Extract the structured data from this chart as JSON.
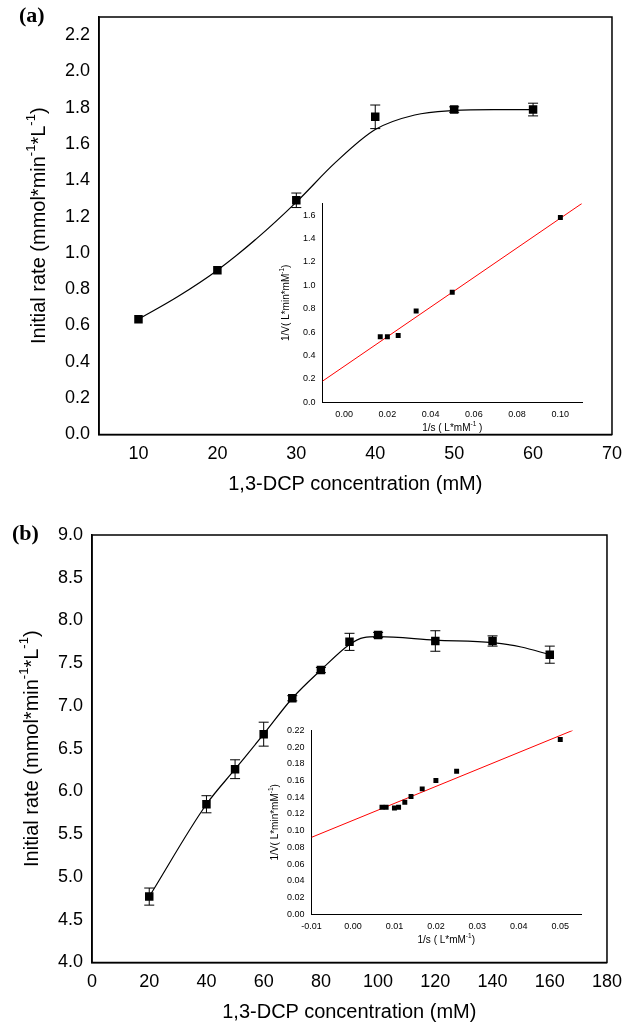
{
  "chart_data": [
    {
      "type": "scatter",
      "title": "(a)",
      "xlabel": "1,3-DCP concentration (mM)",
      "ylabel": "Initial rate (mmol*min$^{-1}$*L$^{-1}$)",
      "xlim": [
        5,
        70
      ],
      "xticks": [
        10,
        20,
        30,
        40,
        50,
        60,
        70
      ],
      "ylim": [
        0,
        2.3
      ],
      "yticks": [
        {
          "value": 0,
          "label": "0.0"
        },
        {
          "value": 0.2,
          "label": "0.2"
        },
        {
          "value": 0.4,
          "label": "0.4"
        },
        {
          "value": 0.6,
          "label": "0.6"
        },
        {
          "value": 0.8,
          "label": "0.8"
        },
        {
          "value": 1,
          "label": "1.0"
        },
        {
          "value": 1.2,
          "label": "1.2"
        },
        {
          "value": 1.4,
          "label": "1.4"
        },
        {
          "value": 1.6,
          "label": "1.6"
        },
        {
          "value": 1.8,
          "label": "1.8"
        },
        {
          "value": 2,
          "label": "2.0"
        },
        {
          "value": 2.2,
          "label": "2.2"
        }
      ],
      "grid": false,
      "legend": false,
      "marker": "square",
      "series": [
        {
          "type": "line",
          "color": "#000000",
          "x": [
            10,
            15,
            20,
            25,
            30,
            35,
            40,
            45,
            50,
            55,
            60
          ],
          "values": [
            0.635,
            0.76,
            0.905,
            1.08,
            1.28,
            1.5,
            1.68,
            1.76,
            1.785,
            1.79,
            1.79
          ],
          "marker": "none",
          "line_style": "solid"
        },
        {
          "type": "scatter",
          "color": "#000000",
          "x": [
            10,
            20,
            30,
            40,
            50,
            60
          ],
          "values": [
            0.635,
            0.905,
            1.29,
            1.75,
            1.79,
            1.79
          ],
          "errors": [
            null,
            null,
            0.04,
            0.065,
            0.015,
            0.035
          ]
        }
      ]
    },
    {
      "type": "scatter",
      "xlabel": "1/s ( L*mM$^{-1}$ )",
      "ylabel": "1/V( L*min*mM$^{-1}$)",
      "xlim": [
        -0.01,
        0.11
      ],
      "xticks": [
        {
          "value": 0,
          "label": "0.00"
        },
        {
          "value": 0.02,
          "label": "0.02"
        },
        {
          "value": 0.04,
          "label": "0.04"
        },
        {
          "value": 0.06,
          "label": "0.06"
        },
        {
          "value": 0.08,
          "label": "0.08"
        },
        {
          "value": 0.1,
          "label": "0.10"
        }
      ],
      "ylim": [
        0,
        1.7
      ],
      "yticks": [
        {
          "value": 0,
          "label": "0.0"
        },
        {
          "value": 0.2,
          "label": "0.2"
        },
        {
          "value": 0.4,
          "label": "0.4"
        },
        {
          "value": 0.6,
          "label": "0.6"
        },
        {
          "value": 0.8,
          "label": "0.8"
        },
        {
          "value": 1,
          "label": "1.0"
        },
        {
          "value": 1.2,
          "label": "1.2"
        },
        {
          "value": 1.4,
          "label": "1.4"
        },
        {
          "value": 1.6,
          "label": "1.6"
        }
      ],
      "grid": false,
      "legend": false,
      "marker": "square",
      "series": [
        {
          "type": "line",
          "color": "#ff0000",
          "x": [
            -0.01,
            0.11
          ],
          "values": [
            0.18,
            1.7
          ],
          "marker": "none",
          "line_style": "solid"
        },
        {
          "type": "scatter",
          "color": "#000000",
          "x": [
            0.0167,
            0.02,
            0.025,
            0.0333,
            0.05,
            0.1
          ],
          "values": [
            0.56,
            0.56,
            0.57,
            0.78,
            0.94,
            1.58
          ]
        }
      ]
    },
    {
      "type": "scatter",
      "title": "(b)",
      "xlabel": "1,3-DCP concentration (mM)",
      "ylabel": "Initial rate (mmol*min$^{-1}$*L$^{-1}$)",
      "xlim": [
        0,
        180
      ],
      "xticks": [
        0,
        20,
        40,
        60,
        80,
        100,
        120,
        140,
        160,
        180
      ],
      "ylim": [
        4,
        9
      ],
      "yticks": [
        {
          "value": 4,
          "label": "4.0"
        },
        {
          "value": 4.5,
          "label": "4.5"
        },
        {
          "value": 5,
          "label": "5.0"
        },
        {
          "value": 5.5,
          "label": "5.5"
        },
        {
          "value": 6,
          "label": "6.0"
        },
        {
          "value": 6.5,
          "label": "6.5"
        },
        {
          "value": 7,
          "label": "7.0"
        },
        {
          "value": 7.5,
          "label": "7.5"
        },
        {
          "value": 8,
          "label": "8.0"
        },
        {
          "value": 8.5,
          "label": "8.5"
        },
        {
          "value": 9,
          "label": "9.0"
        }
      ],
      "grid": false,
      "legend": false,
      "marker": "square",
      "series": [
        {
          "type": "line",
          "color": "#000000",
          "x": [
            20,
            40,
            50,
            60,
            70,
            80,
            90,
            95,
            100,
            120,
            140,
            150,
            160
          ],
          "values": [
            4.77,
            5.85,
            6.26,
            6.67,
            7.09,
            7.42,
            7.72,
            7.8,
            7.81,
            7.77,
            7.74,
            7.69,
            7.6
          ],
          "marker": "none",
          "line_style": "solid"
        },
        {
          "type": "scatter",
          "color": "#000000",
          "x": [
            20,
            40,
            50,
            60,
            70,
            80,
            90,
            100,
            120,
            140,
            160
          ],
          "values": [
            4.77,
            5.85,
            6.26,
            6.67,
            7.09,
            7.42,
            7.75,
            7.83,
            7.76,
            7.76,
            7.6
          ],
          "errors": [
            0.1,
            0.1,
            0.11,
            0.14,
            0.03,
            0.03,
            0.1,
            0.03,
            0.12,
            0.06,
            0.1
          ]
        }
      ]
    },
    {
      "type": "scatter",
      "xlabel": "1/s ( L*mM$^{-1}$)",
      "ylabel": "1/V( L*min*mM$^{-1}$)",
      "xlim": [
        -0.01,
        0.055
      ],
      "xticks": [
        {
          "value": -0.01,
          "label": "-0.01"
        },
        {
          "value": 0,
          "label": "0.00"
        },
        {
          "value": 0.01,
          "label": "0.01"
        },
        {
          "value": 0.02,
          "label": "0.02"
        },
        {
          "value": 0.03,
          "label": "0.03"
        },
        {
          "value": 0.04,
          "label": "0.04"
        },
        {
          "value": 0.05,
          "label": "0.05"
        }
      ],
      "ylim": [
        0,
        0.22
      ],
      "yticks": [
        {
          "value": 0,
          "label": "0.00"
        },
        {
          "value": 0.02,
          "label": "0.02"
        },
        {
          "value": 0.04,
          "label": "0.04"
        },
        {
          "value": 0.06,
          "label": "0.06"
        },
        {
          "value": 0.08,
          "label": "0.08"
        },
        {
          "value": 0.1,
          "label": "0.10"
        },
        {
          "value": 0.12,
          "label": "0.12"
        },
        {
          "value": 0.14,
          "label": "0.14"
        },
        {
          "value": 0.16,
          "label": "0.16"
        },
        {
          "value": 0.18,
          "label": "0.18"
        },
        {
          "value": 0.2,
          "label": "0.20"
        },
        {
          "value": 0.22,
          "label": "0.22"
        }
      ],
      "grid": false,
      "legend": false,
      "marker": "square",
      "series": [
        {
          "type": "line",
          "color": "#ff0000",
          "x": [
            -0.01,
            0.053
          ],
          "values": [
            0.092,
            0.22
          ],
          "marker": "none",
          "line_style": "solid"
        },
        {
          "type": "scatter",
          "color": "#000000",
          "x": [
            0.007,
            0.008,
            0.01,
            0.011,
            0.0125,
            0.014,
            0.0167,
            0.02,
            0.025,
            0.05
          ],
          "values": [
            0.128,
            0.128,
            0.127,
            0.128,
            0.134,
            0.141,
            0.15,
            0.16,
            0.171,
            0.209
          ]
        }
      ]
    }
  ]
}
